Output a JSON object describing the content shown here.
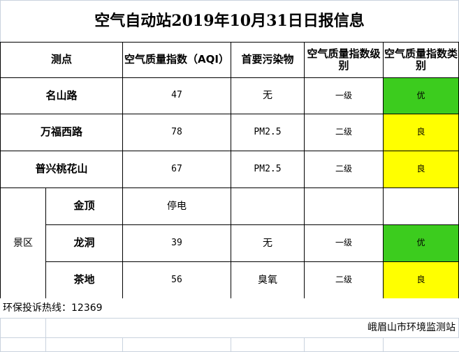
{
  "title": "空气自动站2019年10月31日日报信息",
  "headers": [
    "测点",
    "空气质量指数（AQI）",
    "首要污染物",
    "空气质量指数级别",
    "空气质量指数类别"
  ],
  "group_label": "景区",
  "rows": [
    {
      "site": "名山路",
      "aqi": "47",
      "pollutant": "无",
      "level": "一级",
      "category": "优",
      "color": "#3ccc1e"
    },
    {
      "site": "万福西路",
      "aqi": "78",
      "pollutant": "PM2.5",
      "level": "二级",
      "category": "良",
      "color": "#ffff00"
    },
    {
      "site": "普兴桃花山",
      "aqi": "67",
      "pollutant": "PM2.5",
      "level": "二级",
      "category": "良",
      "color": "#ffff00"
    },
    {
      "site": "金顶",
      "aqi": "停电",
      "pollutant": "",
      "level": "",
      "category": "",
      "color": ""
    },
    {
      "site": "龙洞",
      "aqi": "39",
      "pollutant": "无",
      "level": "一级",
      "category": "优",
      "color": "#3ccc1e"
    },
    {
      "site": "茶地",
      "aqi": "56",
      "pollutant": "臭氧",
      "level": "二级",
      "category": "良",
      "color": "#ffff00"
    }
  ],
  "hotline": "环保投诉热线：12369",
  "footer": "峨眉山市环境监测站"
}
